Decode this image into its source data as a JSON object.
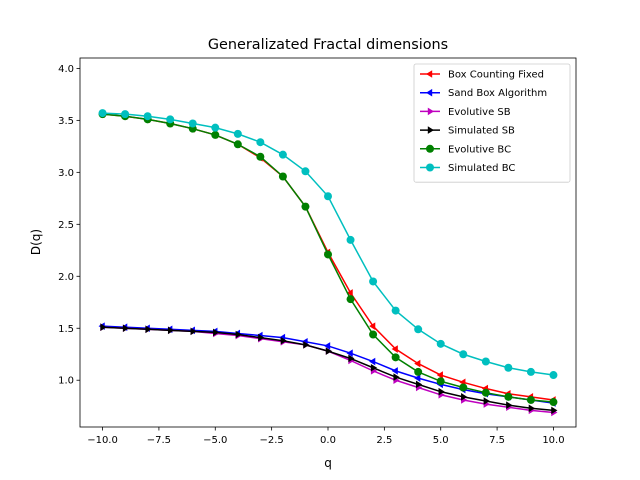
{
  "chart_data": {
    "type": "line",
    "title": "Generalizated Fractal dimensions",
    "xlabel": "q",
    "ylabel": "D(q)",
    "xlim": [
      -11,
      11
    ],
    "ylim": [
      0.55,
      4.1
    ],
    "x_ticks": [
      -10,
      -7.5,
      -5,
      -2.5,
      0,
      2.5,
      5,
      7.5,
      10
    ],
    "x_tick_labels": [
      "−10.0",
      "−7.5",
      "−5.0",
      "−2.5",
      "0.0",
      "2.5",
      "5.0",
      "7.5",
      "10.0"
    ],
    "y_ticks": [
      1.0,
      1.5,
      2.0,
      2.5,
      3.0,
      3.5,
      4.0
    ],
    "y_tick_labels": [
      "1.0",
      "1.5",
      "2.0",
      "2.5",
      "3.0",
      "3.5",
      "4.0"
    ],
    "grid": false,
    "legend_position": "top-right",
    "x": [
      -10,
      -9,
      -8,
      -7,
      -6,
      -5,
      -4,
      -3,
      -2,
      -1,
      0,
      1,
      2,
      3,
      4,
      5,
      6,
      7,
      8,
      9,
      10
    ],
    "series": [
      {
        "name": "Box Counting Fixed",
        "color": "#ff0000",
        "marker": "triangle-left",
        "values": [
          3.56,
          3.54,
          3.51,
          3.47,
          3.42,
          3.36,
          3.27,
          3.14,
          2.96,
          2.67,
          2.23,
          1.84,
          1.52,
          1.3,
          1.16,
          1.05,
          0.98,
          0.92,
          0.87,
          0.84,
          0.81
        ]
      },
      {
        "name": "Sand Box Algorithm",
        "color": "#0000ff",
        "marker": "triangle-left",
        "values": [
          1.52,
          1.51,
          1.5,
          1.49,
          1.48,
          1.47,
          1.45,
          1.43,
          1.41,
          1.37,
          1.33,
          1.26,
          1.18,
          1.09,
          1.02,
          0.96,
          0.91,
          0.87,
          0.84,
          0.81,
          0.78
        ]
      },
      {
        "name": "Evolutive SB",
        "color": "#bf00bf",
        "marker": "triangle-right",
        "values": [
          1.51,
          1.5,
          1.49,
          1.48,
          1.47,
          1.45,
          1.43,
          1.4,
          1.37,
          1.34,
          1.28,
          1.19,
          1.09,
          1.0,
          0.93,
          0.86,
          0.81,
          0.77,
          0.74,
          0.71,
          0.69
        ]
      },
      {
        "name": "Simulated SB",
        "color": "#000000",
        "marker": "triangle-right",
        "values": [
          1.51,
          1.5,
          1.49,
          1.48,
          1.47,
          1.46,
          1.44,
          1.41,
          1.38,
          1.34,
          1.28,
          1.21,
          1.12,
          1.03,
          0.96,
          0.89,
          0.84,
          0.8,
          0.76,
          0.73,
          0.71
        ]
      },
      {
        "name": "Evolutive BC",
        "color": "#008000",
        "marker": "circle",
        "values": [
          3.56,
          3.54,
          3.51,
          3.47,
          3.42,
          3.36,
          3.27,
          3.15,
          2.96,
          2.67,
          2.21,
          1.78,
          1.44,
          1.22,
          1.08,
          0.99,
          0.93,
          0.88,
          0.84,
          0.81,
          0.79
        ]
      },
      {
        "name": "Simulated BC",
        "color": "#00bfbf",
        "marker": "circle",
        "values": [
          3.57,
          3.56,
          3.54,
          3.51,
          3.47,
          3.43,
          3.37,
          3.29,
          3.17,
          3.01,
          2.77,
          2.35,
          1.95,
          1.67,
          1.49,
          1.35,
          1.25,
          1.18,
          1.12,
          1.08,
          1.05
        ]
      }
    ]
  }
}
